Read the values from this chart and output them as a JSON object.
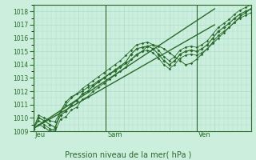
{
  "xlabel": "Pression niveau de la mer( hPa )",
  "ylim": [
    1009,
    1018.5
  ],
  "xlim": [
    0,
    48
  ],
  "yticks": [
    1009,
    1010,
    1011,
    1012,
    1013,
    1014,
    1015,
    1016,
    1017,
    1018
  ],
  "day_labels": [
    "Jeu",
    "Sam",
    "Ven"
  ],
  "day_positions": [
    0,
    16,
    36
  ],
  "bg_color": "#cceedd",
  "grid_color": "#aaddcc",
  "line_color": "#2a6a2a",
  "series": {
    "main": [
      1009.2,
      1010.0,
      1009.8,
      1009.5,
      1009.3,
      1010.2,
      1010.5,
      1011.0,
      1011.3,
      1011.8,
      1012.0,
      1012.4,
      1012.7,
      1013.0,
      1013.3,
      1013.6,
      1013.9,
      1014.2,
      1014.8,
      1015.2,
      1015.3,
      1015.4,
      1015.2,
      1014.8,
      1014.3,
      1014.0,
      1014.3,
      1014.8,
      1015.0,
      1015.1,
      1015.0,
      1015.2,
      1015.5,
      1016.0,
      1016.5,
      1016.8,
      1017.1,
      1017.5,
      1017.8,
      1018.0,
      1018.2
    ],
    "upper": [
      1009.2,
      1010.2,
      1010.0,
      1009.8,
      1009.7,
      1010.5,
      1011.0,
      1011.5,
      1011.8,
      1012.2,
      1012.5,
      1012.8,
      1013.1,
      1013.4,
      1013.7,
      1014.0,
      1014.3,
      1014.7,
      1015.1,
      1015.5,
      1015.6,
      1015.7,
      1015.5,
      1015.1,
      1014.6,
      1014.3,
      1014.6,
      1015.1,
      1015.3,
      1015.4,
      1015.3,
      1015.5,
      1015.8,
      1016.3,
      1016.8,
      1017.1,
      1017.4,
      1017.8,
      1018.1,
      1018.3,
      1018.5
    ],
    "lower": [
      1009.2,
      1009.8,
      1009.5,
      1009.2,
      1009.0,
      1009.9,
      1010.1,
      1010.6,
      1010.8,
      1011.4,
      1011.6,
      1012.0,
      1012.3,
      1012.6,
      1012.9,
      1013.2,
      1013.5,
      1013.8,
      1014.4,
      1014.8,
      1015.0,
      1015.1,
      1014.9,
      1014.5,
      1014.0,
      1013.7,
      1014.0,
      1014.5,
      1014.7,
      1014.8,
      1014.7,
      1014.9,
      1015.2,
      1015.7,
      1016.2,
      1016.5,
      1016.8,
      1017.2,
      1017.5,
      1017.7,
      1017.9
    ],
    "trend1_x": [
      0,
      40
    ],
    "trend1_y": [
      1009.2,
      1017.0
    ],
    "trend2_x": [
      0,
      40
    ],
    "trend2_y": [
      1009.2,
      1018.2
    ],
    "alt": [
      1009.2,
      1009.5,
      1009.3,
      1009.0,
      1009.2,
      1010.5,
      1011.2,
      1011.6,
      1011.8,
      1012.0,
      1012.3,
      1012.5,
      1012.8,
      1013.0,
      1013.3,
      1013.5,
      1013.8,
      1014.1,
      1014.4,
      1014.7,
      1015.0,
      1015.4,
      1015.5,
      1015.4,
      1015.2,
      1014.9,
      1014.6,
      1014.3,
      1014.0,
      1014.1,
      1014.4,
      1014.8,
      1015.2,
      1015.6,
      1016.0,
      1016.4,
      1016.8,
      1017.2,
      1017.6,
      1017.9,
      1018.2
    ]
  }
}
